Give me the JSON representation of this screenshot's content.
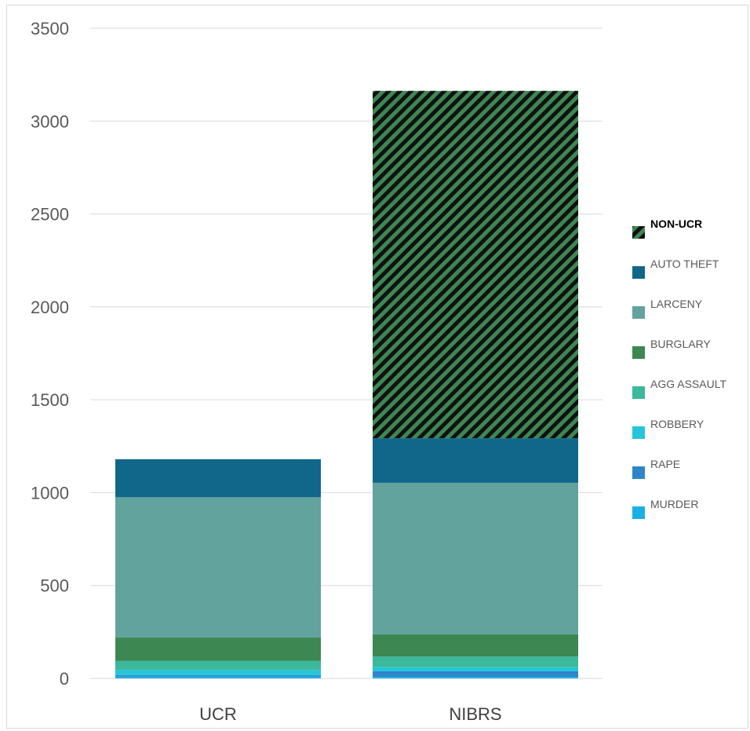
{
  "chart_data": {
    "type": "bar",
    "stacked": true,
    "categories": [
      "UCR",
      "NIBRS"
    ],
    "ylim": [
      0,
      3500
    ],
    "yticks": [
      0,
      500,
      1000,
      1500,
      2000,
      2500,
      3000,
      3500
    ],
    "grid": true,
    "legend_position": "right",
    "title": "",
    "xlabel": "",
    "ylabel": "",
    "series": [
      {
        "name": "MURDER",
        "color": "#1ab0e6",
        "values": [
          10,
          8
        ]
      },
      {
        "name": "RAPE",
        "color": "#2e86c9",
        "values": [
          8,
          30
        ]
      },
      {
        "name": "ROBBERY",
        "color": "#26c6da",
        "values": [
          27,
          22
        ]
      },
      {
        "name": "AGG ASSAULT",
        "color": "#3cb89a",
        "values": [
          50,
          58
        ]
      },
      {
        "name": "BURGLARY",
        "color": "#3d8753",
        "values": [
          125,
          120
        ]
      },
      {
        "name": "LARCENY",
        "color": "#62a39e",
        "values": [
          755,
          815
        ]
      },
      {
        "name": "AUTO THEFT",
        "color": "#10678a",
        "values": [
          205,
          240
        ]
      },
      {
        "name": "NON-UCR",
        "color": "#3d8753",
        "pattern": "diagonal-hatch",
        "values": [
          0,
          1870
        ]
      }
    ],
    "legend_order": [
      "NON-UCR",
      "AUTO THEFT",
      "LARCENY",
      "BURGLARY",
      "AGG ASSAULT",
      "ROBBERY",
      "RAPE",
      "MURDER"
    ],
    "legend_bold": [
      "NON-UCR"
    ]
  }
}
